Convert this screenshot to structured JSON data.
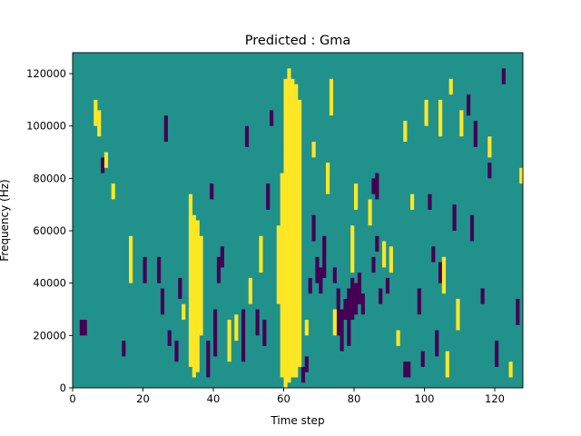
{
  "chart_data": {
    "type": "heatmap",
    "title": "Predicted : Gma",
    "xlabel": "Time step",
    "ylabel": "Frequency (Hz)",
    "xlim": [
      0,
      128
    ],
    "ylim": [
      0,
      128000
    ],
    "xticks": [
      0,
      20,
      40,
      60,
      80,
      100,
      120
    ],
    "yticks": [
      0,
      20000,
      40000,
      60000,
      80000,
      100000,
      120000
    ],
    "n_time_steps": 128,
    "n_freq_bins": 64,
    "value_range": [
      -1,
      1
    ],
    "colors": {
      "low": "#440154",
      "mid": "#21918c",
      "high": "#fde725"
    },
    "background_value": 0,
    "high_cells": [
      [
        58,
        16,
        30
      ],
      [
        59,
        2,
        40
      ],
      [
        60,
        0,
        58
      ],
      [
        61,
        1,
        60
      ],
      [
        62,
        2,
        58
      ],
      [
        63,
        2,
        57
      ],
      [
        64,
        4,
        54
      ],
      [
        33,
        4,
        36
      ],
      [
        34,
        2,
        32
      ],
      [
        35,
        3,
        31
      ],
      [
        36,
        10,
        28
      ],
      [
        16,
        20,
        28
      ],
      [
        60,
        46,
        50
      ],
      [
        61,
        47,
        51
      ],
      [
        73,
        52,
        58
      ],
      [
        72,
        37,
        42
      ],
      [
        79,
        22,
        30
      ],
      [
        80,
        34,
        38
      ],
      [
        74,
        10,
        14
      ],
      [
        94,
        47,
        50
      ],
      [
        104,
        48,
        54
      ],
      [
        105,
        18,
        24
      ],
      [
        106,
        2,
        6
      ],
      [
        107,
        56,
        58
      ],
      [
        109,
        11,
        16
      ],
      [
        124,
        2,
        4
      ],
      [
        127,
        39,
        41
      ],
      [
        118,
        44,
        47
      ],
      [
        90,
        22,
        26
      ],
      [
        84,
        31,
        35
      ],
      [
        96,
        34,
        36
      ],
      [
        44,
        5,
        12
      ],
      [
        46,
        9,
        13
      ],
      [
        50,
        16,
        20
      ],
      [
        53,
        22,
        28
      ],
      [
        88,
        23,
        27
      ],
      [
        100,
        50,
        54
      ],
      [
        110,
        48,
        52
      ],
      [
        92,
        8,
        10
      ],
      [
        31,
        13,
        15
      ],
      [
        6,
        50,
        54
      ],
      [
        7,
        48,
        52
      ],
      [
        9,
        42,
        44
      ],
      [
        11,
        36,
        38
      ],
      [
        66,
        10,
        12
      ],
      [
        68,
        44,
        46
      ]
    ],
    "low_cells": [
      [
        85,
        22,
        24
      ],
      [
        86,
        26,
        28
      ],
      [
        75,
        10,
        18
      ],
      [
        76,
        7,
        14
      ],
      [
        77,
        13,
        16
      ],
      [
        78,
        8,
        18
      ],
      [
        79,
        13,
        20
      ],
      [
        80,
        14,
        19
      ],
      [
        81,
        16,
        21
      ],
      [
        82,
        14,
        17
      ],
      [
        70,
        18,
        22
      ],
      [
        71,
        21,
        28
      ],
      [
        68,
        28,
        32
      ],
      [
        69,
        20,
        24
      ],
      [
        40,
        6,
        14
      ],
      [
        41,
        20,
        24
      ],
      [
        42,
        23,
        26
      ],
      [
        54,
        8,
        12
      ],
      [
        55,
        34,
        38
      ],
      [
        56,
        50,
        52
      ],
      [
        24,
        20,
        24
      ],
      [
        25,
        14,
        18
      ],
      [
        20,
        20,
        24
      ],
      [
        89,
        18,
        20
      ],
      [
        98,
        14,
        18
      ],
      [
        99,
        4,
        6
      ],
      [
        102,
        24,
        26
      ],
      [
        113,
        28,
        32
      ],
      [
        120,
        4,
        8
      ],
      [
        122,
        58,
        60
      ],
      [
        101,
        34,
        36
      ],
      [
        48,
        5,
        14
      ],
      [
        49,
        46,
        49
      ],
      [
        52,
        10,
        14
      ],
      [
        85,
        37,
        39
      ],
      [
        86,
        36,
        40
      ],
      [
        29,
        5,
        8
      ],
      [
        30,
        17,
        20
      ],
      [
        8,
        41,
        43
      ],
      [
        26,
        47,
        51
      ],
      [
        94,
        2,
        4
      ],
      [
        95,
        2,
        4
      ],
      [
        103,
        6,
        10
      ],
      [
        104,
        20,
        23
      ],
      [
        108,
        30,
        34
      ],
      [
        112,
        52,
        55
      ],
      [
        114,
        46,
        50
      ],
      [
        116,
        16,
        18
      ],
      [
        118,
        40,
        42
      ],
      [
        126,
        12,
        16
      ],
      [
        38,
        2,
        8
      ],
      [
        39,
        36,
        38
      ],
      [
        27,
        8,
        10
      ],
      [
        14,
        6,
        8
      ],
      [
        2,
        10,
        12
      ],
      [
        3,
        10,
        12
      ],
      [
        87,
        16,
        18
      ],
      [
        65,
        1,
        3
      ],
      [
        66,
        3,
        5
      ],
      [
        74,
        20,
        22
      ],
      [
        67,
        18,
        20
      ]
    ]
  }
}
